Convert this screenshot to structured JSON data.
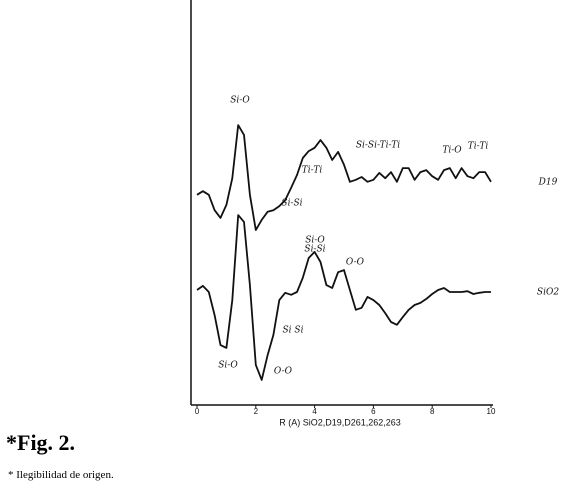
{
  "chart_data": {
    "type": "line",
    "x": [
      0,
      0.2,
      0.4,
      0.6,
      0.8,
      1,
      1.2,
      1.4,
      1.6,
      1.8,
      2,
      2.2,
      2.4,
      2.6,
      2.8,
      3,
      3.2,
      3.4,
      3.6,
      3.8,
      4,
      4.2,
      4.4,
      4.6,
      4.8,
      5,
      5.2,
      5.4,
      5.6,
      5.8,
      6,
      6.2,
      6.4,
      6.6,
      6.8,
      7,
      7.2,
      7.4,
      7.6,
      7.8,
      8,
      8.2,
      8.4,
      8.6,
      8.8,
      9,
      9.2,
      9.4,
      9.6,
      9.8,
      10
    ],
    "series": [
      {
        "name": "D19",
        "color": "#111111",
        "values": [
          51.9,
          52.8,
          51.9,
          48.1,
          46.2,
          49.4,
          56.0,
          69.1,
          66.7,
          51.9,
          43.2,
          45.7,
          47.7,
          48.1,
          49.1,
          50.6,
          53.6,
          56.8,
          61.0,
          62.7,
          63.5,
          65.4,
          63.5,
          60.5,
          62.5,
          59.3,
          55.1,
          55.6,
          56.3,
          55.1,
          55.6,
          57.3,
          56.0,
          57.5,
          55.1,
          58.5,
          58.5,
          55.6,
          57.5,
          58.0,
          56.5,
          55.6,
          58.0,
          58.5,
          56.0,
          58.5,
          56.5,
          56.0,
          57.5,
          57.5,
          55.1
        ]
      },
      {
        "name": "SiO2",
        "color": "#111111",
        "values": [
          28.4,
          29.4,
          27.9,
          22.2,
          14.8,
          14.1,
          25.9,
          46.9,
          45.2,
          29.6,
          9.9,
          6.2,
          12.3,
          17.3,
          25.9,
          27.7,
          27.2,
          27.9,
          31.4,
          36.3,
          37.8,
          35.3,
          29.6,
          28.9,
          32.8,
          33.3,
          28.4,
          23.5,
          24.0,
          26.7,
          25.9,
          24.7,
          22.7,
          20.5,
          19.8,
          21.7,
          23.5,
          24.7,
          25.2,
          26.2,
          27.4,
          28.4,
          28.9,
          27.9,
          27.9,
          27.9,
          28.1,
          27.4,
          27.7,
          27.9,
          27.9
        ]
      }
    ],
    "xlim": [
      0,
      10
    ],
    "xticks": [
      0,
      2,
      4,
      6,
      8,
      10
    ],
    "ylim": [
      0,
      100
    ],
    "x_label": "R (A)   SiO2,D19,D261,262,263",
    "annotations": [
      "Si-O",
      "Si-Si-Ti-Ti",
      "Ti-O",
      "Ti-Ti",
      "Ti-Ti",
      "Si-Si",
      "Si-O",
      "O-O",
      "Si-Si",
      "Si-O",
      "Si Si",
      "O-O"
    ],
    "caption": "*Fig. 2.",
    "footnote": "* Ilegibilidad de origen."
  }
}
